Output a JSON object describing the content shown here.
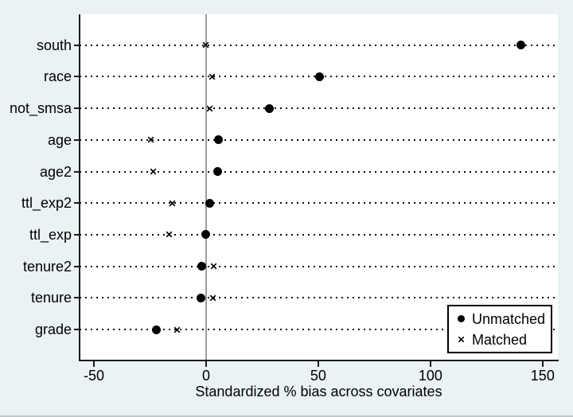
{
  "chart_data": {
    "type": "scatter",
    "subtype": "horizontal-dot-plot",
    "title": "",
    "xlabel": "Standardized % bias across covariates",
    "ylabel": "",
    "categories": [
      "south",
      "race",
      "not_smsa",
      "age",
      "age2",
      "ttl_exp2",
      "ttl_exp",
      "tenure2",
      "tenure",
      "grade"
    ],
    "series": [
      {
        "name": "Unmatched",
        "marker": "filled-circle",
        "color": "#000000",
        "values": [
          140.2,
          50.5,
          28.1,
          5.5,
          5.1,
          1.5,
          -0.1,
          -1.8,
          -2.2,
          -22.3
        ]
      },
      {
        "name": "Matched",
        "marker": "x",
        "color": "#000000",
        "values": [
          -0.3,
          2.5,
          1.5,
          -24.7,
          -23.6,
          -15.0,
          -16.5,
          3.5,
          2.9,
          -12.9
        ]
      }
    ],
    "x_ticks": [
      -50,
      0,
      50,
      100,
      150
    ],
    "xlim": [
      -56.4,
      156.8
    ],
    "reference_line_x": 0,
    "grid": "horizontal-dotted",
    "legend_position": "inside-bottom-right"
  },
  "colors": {
    "figure_background": "#eaf2f3",
    "plot_background": "#ffffff",
    "axis": "#1a1a1a",
    "marker": "#000000",
    "grid_dots": "#0a0a0a",
    "reference_line": "#9a9f9f",
    "bottom_edge": "#c2c9ca"
  }
}
